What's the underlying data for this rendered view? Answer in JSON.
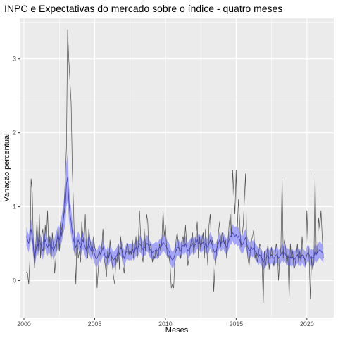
{
  "chart_data": {
    "type": "line",
    "title": "INPC e Expectativas do mercado sobre o índice - quatro meses",
    "xlabel": "Meses",
    "ylabel": "Variação percentual",
    "xlim": [
      1999.7,
      2021.9
    ],
    "ylim": [
      -0.5,
      3.55
    ],
    "x_ticks": [
      2000,
      2005,
      2010,
      2015,
      2020
    ],
    "x_tick_labels": [
      "2000",
      "2005",
      "2010",
      "2015",
      "2020"
    ],
    "y_ticks": [
      0,
      1,
      2,
      3
    ],
    "y_tick_labels": [
      "0",
      "1",
      "2",
      "3"
    ],
    "grid": true,
    "legend": "none",
    "colors": {
      "panel": "#ebebeb",
      "grid_major": "#ffffff",
      "inpc_line": "#4d4d4d",
      "expectation_line": "#3f3fb2",
      "ribbon": "#6a6aff"
    },
    "series": [
      {
        "kind": "inpc",
        "x_start": 2000.17,
        "step": 0.0833,
        "values": [
          0.12,
          0.1,
          -0.05,
          0.3,
          1.38,
          1.2,
          0.45,
          0.17,
          0.5,
          0.8,
          0.4,
          0.9,
          0.3,
          0.6,
          0.7,
          0.3,
          0.75,
          0.55,
          0.95,
          0.4,
          0.6,
          0.25,
          0.65,
          0.45,
          0.1,
          0.3,
          0.55,
          0.7,
          0.4,
          0.8,
          0.6,
          0.75,
          0.95,
          1.4,
          1.8,
          3.4,
          3.0,
          2.7,
          2.4,
          1.5,
          1.0,
          0.4,
          -0.05,
          0.6,
          0.3,
          0.4,
          0.25,
          0.8,
          0.6,
          0.5,
          0.9,
          0.4,
          0.3,
          0.7,
          0.55,
          0.45,
          0.35,
          0.6,
          0.45,
          0.4,
          -0.1,
          0.15,
          0.4,
          0.35,
          0.45,
          0.7,
          0.3,
          0.2,
          0.05,
          0.4,
          0.3,
          0.55,
          0.35,
          0.2,
          0.05,
          -0.05,
          0.3,
          0.25,
          0.5,
          0.15,
          0.6,
          0.4,
          0.2,
          0.1,
          0.35,
          0.45,
          0.5,
          0.35,
          0.4,
          0.35,
          0.55,
          0.3,
          0.4,
          0.6,
          0.3,
          0.5,
          0.95,
          0.6,
          0.35,
          0.25,
          0.7,
          0.4,
          0.9,
          0.8,
          0.35,
          0.5,
          0.45,
          0.25,
          0.35,
          0.3,
          0.45,
          0.35,
          0.3,
          0.5,
          0.4,
          0.55,
          0.95,
          0.6,
          0.75,
          0.45,
          0.3,
          0.35,
          0.2,
          -0.1,
          -0.05,
          -0.1,
          0.3,
          0.55,
          0.65,
          0.5,
          0.4,
          0.3,
          0.55,
          0.6,
          0.45,
          0.75,
          0.5,
          0.2,
          0.3,
          0.45,
          0.55,
          0.65,
          0.35,
          0.5,
          0.6,
          0.8,
          0.3,
          0.6,
          0.4,
          0.55,
          0.65,
          0.3,
          0.7,
          0.45,
          0.2,
          0.75,
          0.9,
          0.5,
          0.55,
          -0.15,
          0.15,
          0.3,
          0.5,
          0.65,
          0.8,
          0.45,
          0.65,
          0.6,
          0.5,
          0.55,
          0.3,
          0.5,
          0.75,
          0.9,
          0.6,
          1.5,
          1.2,
          0.9,
          1.5,
          0.7,
          1.1,
          0.8,
          0.45,
          0.6,
          0.75,
          1.1,
          1.45,
          0.5,
          0.3,
          0.2,
          0.4,
          0.55,
          0.6,
          0.7,
          0.3,
          0.4,
          0.25,
          0.35,
          0.5,
          0.45,
          0.25,
          -0.3,
          0.4,
          0.2,
          0.35,
          0.5,
          0.15,
          0.3,
          0.45,
          0.3,
          0.2,
          0.35,
          0.5,
          0.4,
          0.0,
          0.3,
          0.45,
          1.4,
          0.3,
          0.55,
          0.45,
          0.2,
          0.35,
          -0.25,
          0.5,
          0.3,
          0.4,
          0.15,
          0.2,
          0.35,
          0.5,
          0.25,
          0.4,
          0.25,
          0.6,
          0.35,
          0.3,
          0.2,
          0.95,
          0.5,
          0.3,
          -0.25,
          0.3,
          0.15,
          0.25,
          1.45,
          0.35,
          0.4,
          0.85,
          0.7,
          0.95,
          0.6,
          0.3
        ]
      },
      {
        "kind": "expectativa",
        "x_start": 2000.17,
        "step": 0.0833,
        "values": [
          0.6,
          0.55,
          0.5,
          0.62,
          0.7,
          0.58,
          0.45,
          0.3,
          0.4,
          0.5,
          0.45,
          0.55,
          0.5,
          0.45,
          0.4,
          0.5,
          0.55,
          0.5,
          0.45,
          0.5,
          0.48,
          0.45,
          0.45,
          0.4,
          0.45,
          0.5,
          0.55,
          0.6,
          0.55,
          0.65,
          0.7,
          0.8,
          0.9,
          1.0,
          1.3,
          1.4,
          1.1,
          0.9,
          0.8,
          0.65,
          0.55,
          0.5,
          0.45,
          0.5,
          0.55,
          0.5,
          0.45,
          0.5,
          0.55,
          0.5,
          0.45,
          0.4,
          0.45,
          0.5,
          0.45,
          0.4,
          0.45,
          0.4,
          0.35,
          0.3,
          0.3,
          0.35,
          0.38,
          0.35,
          0.4,
          0.45,
          0.38,
          0.32,
          0.3,
          0.35,
          0.32,
          0.38,
          0.35,
          0.3,
          0.28,
          0.3,
          0.32,
          0.35,
          0.4,
          0.35,
          0.45,
          0.42,
          0.35,
          0.3,
          0.35,
          0.4,
          0.4,
          0.38,
          0.4,
          0.38,
          0.42,
          0.38,
          0.4,
          0.45,
          0.42,
          0.45,
          0.5,
          0.48,
          0.45,
          0.42,
          0.45,
          0.45,
          0.5,
          0.5,
          0.45,
          0.42,
          0.4,
          0.38,
          0.4,
          0.4,
          0.42,
          0.4,
          0.42,
          0.45,
          0.45,
          0.48,
          0.52,
          0.5,
          0.48,
          0.45,
          0.42,
          0.4,
          0.35,
          0.3,
          0.28,
          0.3,
          0.35,
          0.4,
          0.45,
          0.45,
          0.42,
          0.4,
          0.45,
          0.48,
          0.45,
          0.5,
          0.45,
          0.4,
          0.42,
          0.45,
          0.48,
          0.5,
          0.45,
          0.48,
          0.5,
          0.55,
          0.5,
          0.52,
          0.48,
          0.5,
          0.52,
          0.45,
          0.5,
          0.48,
          0.45,
          0.5,
          0.55,
          0.5,
          0.48,
          0.4,
          0.38,
          0.4,
          0.45,
          0.5,
          0.55,
          0.5,
          0.52,
          0.55,
          0.5,
          0.48,
          0.45,
          0.5,
          0.55,
          0.6,
          0.6,
          0.65,
          0.62,
          0.6,
          0.62,
          0.58,
          0.6,
          0.55,
          0.5,
          0.48,
          0.5,
          0.55,
          0.58,
          0.5,
          0.45,
          0.4,
          0.42,
          0.45,
          0.42,
          0.45,
          0.4,
          0.38,
          0.35,
          0.32,
          0.35,
          0.32,
          0.3,
          0.25,
          0.28,
          0.3,
          0.32,
          0.35,
          0.3,
          0.32,
          0.35,
          0.32,
          0.3,
          0.32,
          0.35,
          0.35,
          0.3,
          0.32,
          0.35,
          0.4,
          0.35,
          0.38,
          0.35,
          0.32,
          0.33,
          0.3,
          0.32,
          0.3,
          0.32,
          0.28,
          0.3,
          0.32,
          0.35,
          0.3,
          0.32,
          0.3,
          0.35,
          0.32,
          0.3,
          0.28,
          0.35,
          0.38,
          0.35,
          0.3,
          0.32,
          0.3,
          0.32,
          0.4,
          0.35,
          0.38,
          0.4,
          0.42,
          0.4,
          0.38,
          0.35
        ]
      }
    ],
    "ribbon_halfwidth": [
      0.12,
      0.12,
      0.12,
      0.12,
      0.14,
      0.14,
      0.14,
      0.13,
      0.12,
      0.12,
      0.12,
      0.12,
      0.12,
      0.12,
      0.12,
      0.12,
      0.12,
      0.12,
      0.12,
      0.12,
      0.12,
      0.12,
      0.12,
      0.12,
      0.13,
      0.14,
      0.15,
      0.16,
      0.16,
      0.17,
      0.18,
      0.2,
      0.22,
      0.25,
      0.3,
      0.32,
      0.25,
      0.2,
      0.18,
      0.16,
      0.14,
      0.13,
      0.12,
      0.12,
      0.12,
      0.12,
      0.12,
      0.12,
      0.12,
      0.12,
      0.12,
      0.12,
      0.12,
      0.12,
      0.12,
      0.12,
      0.12,
      0.12,
      0.12,
      0.12,
      0.11,
      0.11,
      0.11,
      0.11,
      0.11,
      0.11,
      0.11,
      0.11,
      0.11,
      0.11,
      0.11,
      0.11,
      0.11,
      0.11,
      0.11,
      0.11,
      0.11,
      0.11,
      0.11,
      0.11,
      0.11,
      0.11,
      0.11,
      0.11,
      0.11,
      0.11,
      0.11,
      0.11,
      0.11,
      0.11,
      0.11,
      0.11,
      0.11,
      0.11,
      0.11,
      0.11,
      0.11,
      0.11,
      0.11,
      0.11,
      0.11,
      0.11,
      0.11,
      0.11,
      0.11,
      0.11,
      0.11,
      0.11,
      0.11,
      0.11,
      0.11,
      0.11,
      0.11,
      0.11,
      0.11,
      0.11,
      0.11,
      0.11,
      0.11,
      0.11,
      0.11,
      0.11,
      0.11,
      0.11,
      0.11,
      0.11,
      0.11,
      0.11,
      0.11,
      0.11,
      0.11,
      0.11,
      0.11,
      0.11,
      0.11,
      0.11,
      0.11,
      0.11,
      0.11,
      0.11,
      0.11,
      0.11,
      0.11,
      0.11,
      0.11,
      0.11,
      0.11,
      0.11,
      0.11,
      0.11,
      0.11,
      0.11,
      0.11,
      0.11,
      0.11,
      0.11,
      0.11,
      0.11,
      0.11,
      0.11,
      0.11,
      0.11,
      0.11,
      0.11,
      0.11,
      0.11,
      0.11,
      0.11,
      0.11,
      0.11,
      0.11,
      0.11,
      0.11,
      0.11,
      0.11,
      0.11,
      0.12,
      0.12,
      0.12,
      0.12,
      0.12,
      0.12,
      0.12,
      0.12,
      0.12,
      0.12,
      0.12,
      0.12,
      0.12,
      0.12,
      0.11,
      0.11,
      0.11,
      0.11,
      0.11,
      0.11,
      0.11,
      0.11,
      0.11,
      0.11,
      0.11,
      0.11,
      0.11,
      0.11,
      0.11,
      0.11,
      0.11,
      0.11,
      0.11,
      0.11,
      0.11,
      0.11,
      0.11,
      0.11,
      0.11,
      0.11,
      0.11,
      0.11,
      0.11,
      0.11,
      0.11,
      0.11,
      0.11,
      0.11,
      0.11,
      0.11,
      0.11,
      0.11,
      0.11,
      0.11,
      0.11,
      0.11,
      0.11,
      0.11,
      0.11,
      0.11,
      0.11,
      0.11,
      0.11,
      0.11,
      0.11,
      0.11,
      0.11,
      0.11,
      0.11,
      0.11,
      0.11,
      0.11,
      0.11,
      0.11,
      0.11,
      0.11,
      0.11,
      0.11,
      0.11,
      0.11,
      0.11,
      0.11,
      0.11
    ]
  }
}
